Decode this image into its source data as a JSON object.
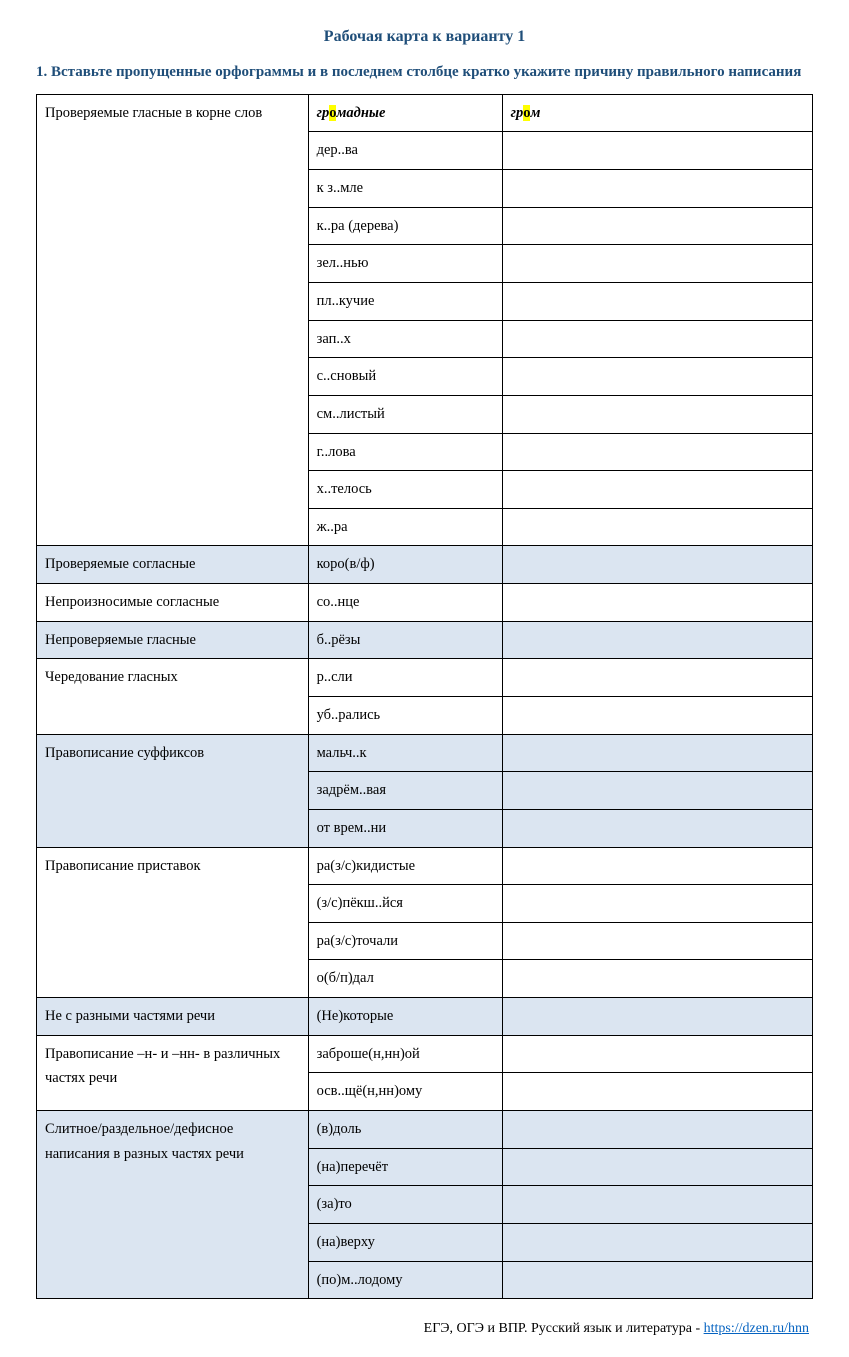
{
  "title": "Рабочая карта к варианту 1",
  "task": "1. Вставьте пропущенные орфограммы и в последнем столбце кратко укажите причину правильного написания",
  "colors": {
    "heading": "#1f4e79",
    "shade": "#dbe5f1",
    "highlight": "#ffff00",
    "link": "#0563c1",
    "border": "#000000",
    "background": "#ffffff"
  },
  "example": {
    "word_pre": "гр",
    "word_hl": "о",
    "word_post": "мадные",
    "check_pre": "гр",
    "check_hl": "о",
    "check_post": "м"
  },
  "sections": [
    {
      "label": "Проверяемые гласные в корне слов",
      "words": [
        "дер..ва",
        "к з..мле",
        "к..ра (дерева)",
        "зел..нью",
        "пл..кучие",
        "зап..х",
        "с..сновый",
        "см..листый",
        "г..лова",
        "х..телось",
        "ж..ра"
      ],
      "shaded": false,
      "has_example": true
    },
    {
      "label": "Проверяемые согласные",
      "words": [
        "коро(в/ф)"
      ],
      "shaded": true
    },
    {
      "label": "Непроизносимые согласные",
      "words": [
        "со..нце"
      ],
      "shaded": false
    },
    {
      "label": "Непроверяемые гласные",
      "words": [
        "б..рёзы"
      ],
      "shaded": true
    },
    {
      "label": "Чередование гласных",
      "words": [
        "р..сли",
        "уб..рались"
      ],
      "shaded": false
    },
    {
      "label": "Правописание суффиксов",
      "words": [
        "мальч..к",
        "задрём..вая",
        "от врем..ни"
      ],
      "shaded": true
    },
    {
      "label": "Правописание приставок",
      "words": [
        "ра(з/с)кидистые",
        "(з/с)пёкш..йся",
        "ра(з/с)точали",
        "о(б/п)дал"
      ],
      "shaded": false
    },
    {
      "label": "Не с разными частями речи",
      "words": [
        "(Не)которые"
      ],
      "shaded": true
    },
    {
      "label": "Правописание –н- и –нн- в различных частях речи",
      "words": [
        "заброше(н,нн)ой",
        "осв..щё(н,нн)ому"
      ],
      "shaded": false
    },
    {
      "label": "Слитное/раздельное/дефисное написания в разных частях речи",
      "words": [
        "(в)доль",
        "(на)перечёт",
        "(за)то",
        "(на)верху",
        "(по)м..лодому"
      ],
      "shaded": true
    }
  ],
  "footer": {
    "text": "ЕГЭ, ОГЭ и ВПР. Русский язык и литература - ",
    "link_text": "https://dzen.ru/hnn",
    "link_href": "https://dzen.ru/hnn"
  }
}
